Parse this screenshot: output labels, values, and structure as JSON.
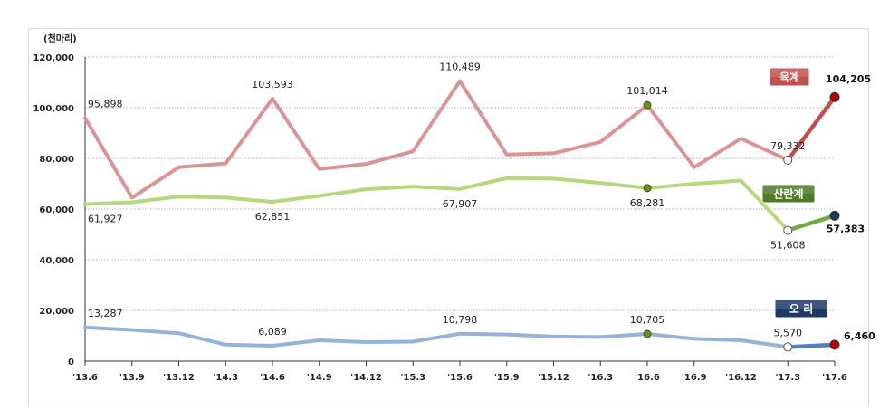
{
  "chart_data": {
    "type": "line",
    "unit_label": "(천마리)",
    "categories": [
      "'13.6",
      "'13.9",
      "'13.12",
      "'14.3",
      "'14.6",
      "'14.9",
      "'14.12",
      "'15.3",
      "'15.6",
      "'15.9",
      "'15.12",
      "'16.3",
      "'16.6",
      "'16.9",
      "'16.12",
      "'17.3",
      "'17.6"
    ],
    "ylim": [
      0,
      120000
    ],
    "yticks": [
      0,
      20000,
      40000,
      60000,
      80000,
      100000,
      120000
    ],
    "ytick_labels": [
      "0",
      "20,000",
      "40,000",
      "60,000",
      "80,000",
      "100,000",
      "120,000"
    ],
    "grid": true,
    "series": [
      {
        "name": "육계",
        "color": "#d99594",
        "highlight_color": "#c0504d",
        "marker_color": "#c00000",
        "values": [
          95898,
          64500,
          76500,
          78000,
          103593,
          75800,
          77800,
          82800,
          110489,
          81500,
          82000,
          86500,
          101014,
          76500,
          87800,
          79332,
          104205
        ],
        "labels": [
          {
            "index": 0,
            "text": "95,898",
            "pos": "above"
          },
          {
            "index": 4,
            "text": "103,593",
            "pos": "above"
          },
          {
            "index": 8,
            "text": "110,489",
            "pos": "above"
          },
          {
            "index": 12,
            "text": "101,014",
            "pos": "above"
          },
          {
            "index": 15,
            "text": "79,332",
            "pos": "above"
          },
          {
            "index": 16,
            "text": "104,205",
            "pos": "above-right",
            "bold": true
          }
        ]
      },
      {
        "name": "산란계",
        "color": "#b3d97a",
        "highlight_color": "#70ad47",
        "marker_color": "#1f3864",
        "values": [
          61927,
          62700,
          64900,
          64500,
          62851,
          65200,
          67800,
          68900,
          67907,
          72200,
          72000,
          70300,
          68281,
          70000,
          71200,
          51608,
          57383
        ],
        "labels": [
          {
            "index": 0,
            "text": "61,927",
            "pos": "below"
          },
          {
            "index": 4,
            "text": "62,851",
            "pos": "below"
          },
          {
            "index": 8,
            "text": "67,907",
            "pos": "below"
          },
          {
            "index": 12,
            "text": "68,281",
            "pos": "below"
          },
          {
            "index": 15,
            "text": "51,608",
            "pos": "below"
          },
          {
            "index": 16,
            "text": "57,383",
            "pos": "below-right",
            "bold": true
          }
        ]
      },
      {
        "name": "오 리",
        "color": "#95b3d7",
        "highlight_color": "#4f81bd",
        "marker_color": "#c00000",
        "values": [
          13287,
          12300,
          11000,
          6500,
          6089,
          8200,
          7500,
          7700,
          10798,
          10500,
          9700,
          9500,
          10705,
          8800,
          8200,
          5570,
          6460
        ],
        "labels": [
          {
            "index": 0,
            "text": "13,287",
            "pos": "above"
          },
          {
            "index": 4,
            "text": "6,089",
            "pos": "above"
          },
          {
            "index": 8,
            "text": "10,798",
            "pos": "above"
          },
          {
            "index": 12,
            "text": "10,705",
            "pos": "above"
          },
          {
            "index": 15,
            "text": "5,570",
            "pos": "above"
          },
          {
            "index": 16,
            "text": "6,460",
            "pos": "right",
            "bold": true
          }
        ]
      }
    ],
    "legend_tags": [
      {
        "series": 0,
        "text": "육계",
        "bg": "#c0504d"
      },
      {
        "series": 1,
        "text": "산란계",
        "bg": "#4f7a28"
      },
      {
        "series": 2,
        "text": "오 리",
        "bg": "#1f3864"
      }
    ]
  }
}
